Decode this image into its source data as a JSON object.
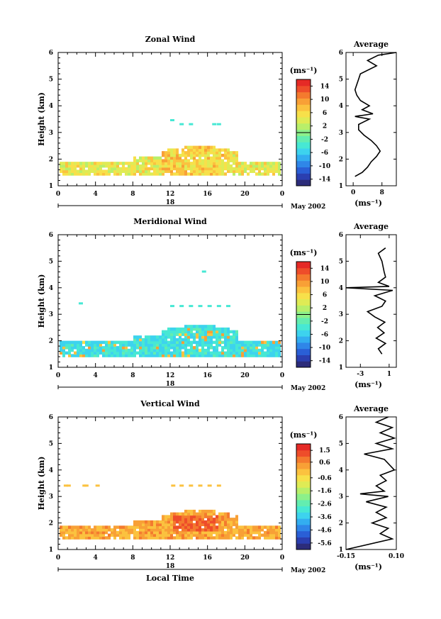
{
  "figure": {
    "xlabel": "Local Time",
    "date_label": "May 2002",
    "day_label": "18",
    "unit": "(ms⁻¹)",
    "avg_title": "Average"
  },
  "chart_data": [
    {
      "type": "heatmap",
      "title": "Zonal Wind",
      "ylabel": "Height (km)",
      "xticks": [
        "0",
        "4",
        "8",
        "12",
        "16",
        "20",
        "0"
      ],
      "yticks": [
        "1",
        "2",
        "3",
        "4",
        "5",
        "6"
      ],
      "ylim": [
        1,
        6
      ],
      "xlim": [
        0,
        24
      ],
      "colorbar_ticks": [
        "14",
        "10",
        "6",
        "2",
        "-2",
        "-6",
        "-10",
        "-14"
      ],
      "colorbar_range": [
        -16,
        16
      ],
      "average_profile": {
        "title": "Average",
        "xticks": [
          "0",
          "8"
        ],
        "xlim": [
          -2,
          12
        ],
        "xlabel": "(ms⁻¹)",
        "height": [
          1.35,
          1.5,
          1.7,
          1.9,
          2.1,
          2.3,
          2.5,
          2.7,
          2.9,
          3.1,
          3.3,
          3.5,
          3.6,
          3.7,
          3.85,
          4.0,
          4.2,
          4.4,
          4.6,
          5.0,
          5.2,
          5.5,
          5.7,
          5.9,
          6.0
        ],
        "value": [
          0.5,
          2.5,
          4.0,
          5.0,
          6.5,
          7.5,
          6.5,
          5.0,
          3.0,
          1.5,
          1.5,
          4.5,
          0.5,
          5.5,
          2.5,
          4.5,
          2.0,
          1.0,
          0.5,
          1.5,
          2.0,
          6.5,
          4.0,
          7.0,
          12.0
        ]
      }
    },
    {
      "type": "heatmap",
      "title": "Meridional Wind",
      "ylabel": "Height (km)",
      "xticks": [
        "0",
        "4",
        "8",
        "12",
        "16",
        "20",
        "0"
      ],
      "yticks": [
        "1",
        "2",
        "3",
        "4",
        "5",
        "6"
      ],
      "ylim": [
        1,
        6
      ],
      "xlim": [
        0,
        24
      ],
      "colorbar_ticks": [
        "14",
        "10",
        "6",
        "2",
        "-2",
        "-6",
        "-10",
        "-14"
      ],
      "colorbar_range": [
        -16,
        16
      ],
      "average_profile": {
        "title": "Average",
        "xticks": [
          "-3",
          "1"
        ],
        "xlim": [
          -5,
          2
        ],
        "xlabel": "(ms⁻¹)",
        "height": [
          1.5,
          1.7,
          1.9,
          2.1,
          2.3,
          2.5,
          2.7,
          2.9,
          3.1,
          3.3,
          3.5,
          3.7,
          3.9,
          4.0,
          4.05,
          4.2,
          4.4,
          4.6,
          5.0,
          5.3,
          5.5
        ],
        "value": [
          0.0,
          -0.5,
          0.5,
          -0.8,
          0.3,
          -0.6,
          0.4,
          -1.0,
          -2.0,
          0.0,
          0.5,
          -1.0,
          1.5,
          -5.0,
          1.0,
          -0.5,
          0.5,
          0.3,
          0.0,
          -0.5,
          0.5
        ]
      }
    },
    {
      "type": "heatmap",
      "title": "Vertical Wind",
      "ylabel": "Height (km)",
      "xticks": [
        "0",
        "4",
        "8",
        "12",
        "16",
        "20",
        "0"
      ],
      "yticks": [
        "1",
        "2",
        "3",
        "4",
        "5",
        "6"
      ],
      "ylim": [
        1,
        6
      ],
      "xlim": [
        0,
        24
      ],
      "colorbar_ticks": [
        "1.5",
        "0.6",
        "-0.6",
        "-1.6",
        "-2.6",
        "-3.6",
        "-4.6",
        "-5.6"
      ],
      "colorbar_range": [
        -6.1,
        2.0
      ],
      "average_profile": {
        "title": "Average",
        "xticks": [
          "-0.15",
          "0.10"
        ],
        "xlim": [
          -0.15,
          0.1
        ],
        "xlabel": "(ms⁻¹)",
        "height": [
          1.0,
          1.4,
          1.6,
          1.8,
          2.0,
          2.2,
          2.4,
          2.6,
          2.8,
          3.0,
          3.1,
          3.2,
          3.4,
          3.6,
          3.8,
          4.0,
          4.4,
          4.6,
          4.8,
          5.0,
          5.2,
          5.4,
          5.6,
          5.8,
          6.0
        ],
        "value": [
          -0.15,
          0.08,
          0.02,
          0.06,
          -0.02,
          0.05,
          0.0,
          0.05,
          -0.05,
          0.06,
          -0.08,
          0.04,
          0.0,
          0.05,
          0.02,
          0.09,
          0.04,
          -0.06,
          0.08,
          0.0,
          0.09,
          0.02,
          0.08,
          0.0,
          0.06
        ]
      }
    }
  ]
}
